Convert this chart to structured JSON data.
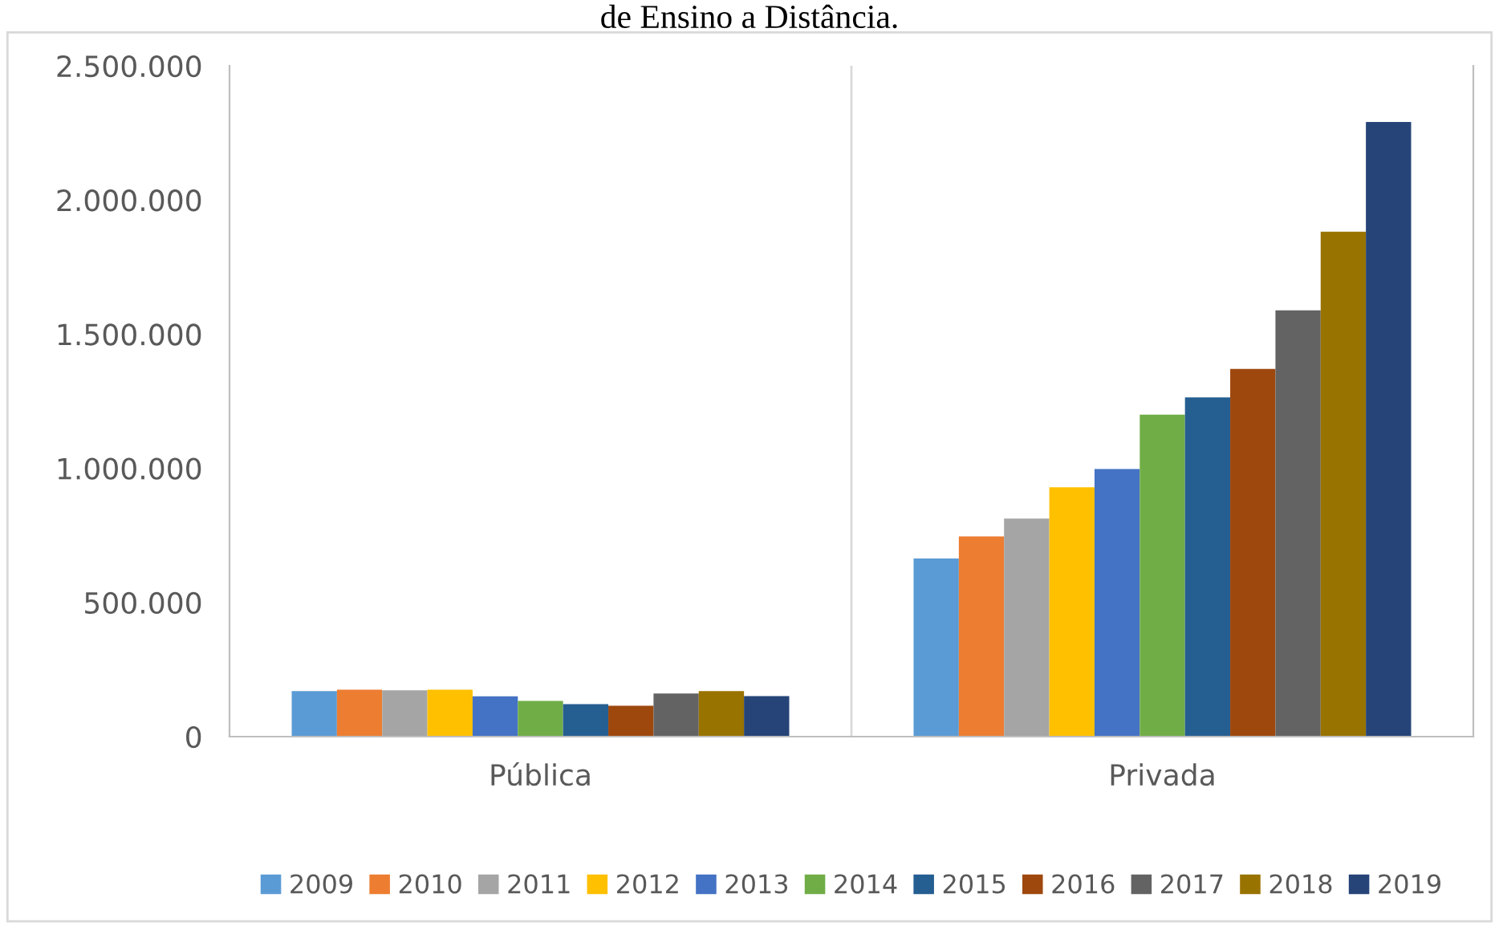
{
  "chart_data": {
    "type": "bar",
    "title": "de Ensino a Distância.",
    "categories": [
      "Pública",
      "Privada"
    ],
    "series": [
      {
        "name": "2009",
        "color": "#5b9bd5",
        "values": [
          170000,
          664000
        ]
      },
      {
        "name": "2010",
        "color": "#ed7d31",
        "values": [
          175000,
          746000
        ]
      },
      {
        "name": "2011",
        "color": "#a5a5a5",
        "values": [
          173000,
          813000
        ]
      },
      {
        "name": "2012",
        "color": "#ffc000",
        "values": [
          175000,
          929000
        ]
      },
      {
        "name": "2013",
        "color": "#4472c4",
        "values": [
          150000,
          997000
        ]
      },
      {
        "name": "2014",
        "color": "#70ad47",
        "values": [
          133000,
          1200000
        ]
      },
      {
        "name": "2015",
        "color": "#255e91",
        "values": [
          121000,
          1264000
        ]
      },
      {
        "name": "2016",
        "color": "#9e480e",
        "values": [
          115000,
          1370000
        ]
      },
      {
        "name": "2017",
        "color": "#636363",
        "values": [
          161000,
          1589000
        ]
      },
      {
        "name": "2018",
        "color": "#997300",
        "values": [
          170000,
          1882000
        ]
      },
      {
        "name": "2019",
        "color": "#264478",
        "values": [
          151000,
          2291000
        ]
      }
    ],
    "ylim": [
      0,
      2500000
    ],
    "yticks": [
      0,
      {
        "value": 500000,
        "label": "500.000"
      },
      {
        "value": 1000000,
        "label": "1.000.000"
      },
      {
        "value": 1500000,
        "label": "1.500.000"
      },
      {
        "value": 2000000,
        "label": "2.000.000"
      },
      {
        "value": 2500000,
        "label": "2.500.000"
      }
    ],
    "grid": false,
    "legend": "bottom"
  }
}
